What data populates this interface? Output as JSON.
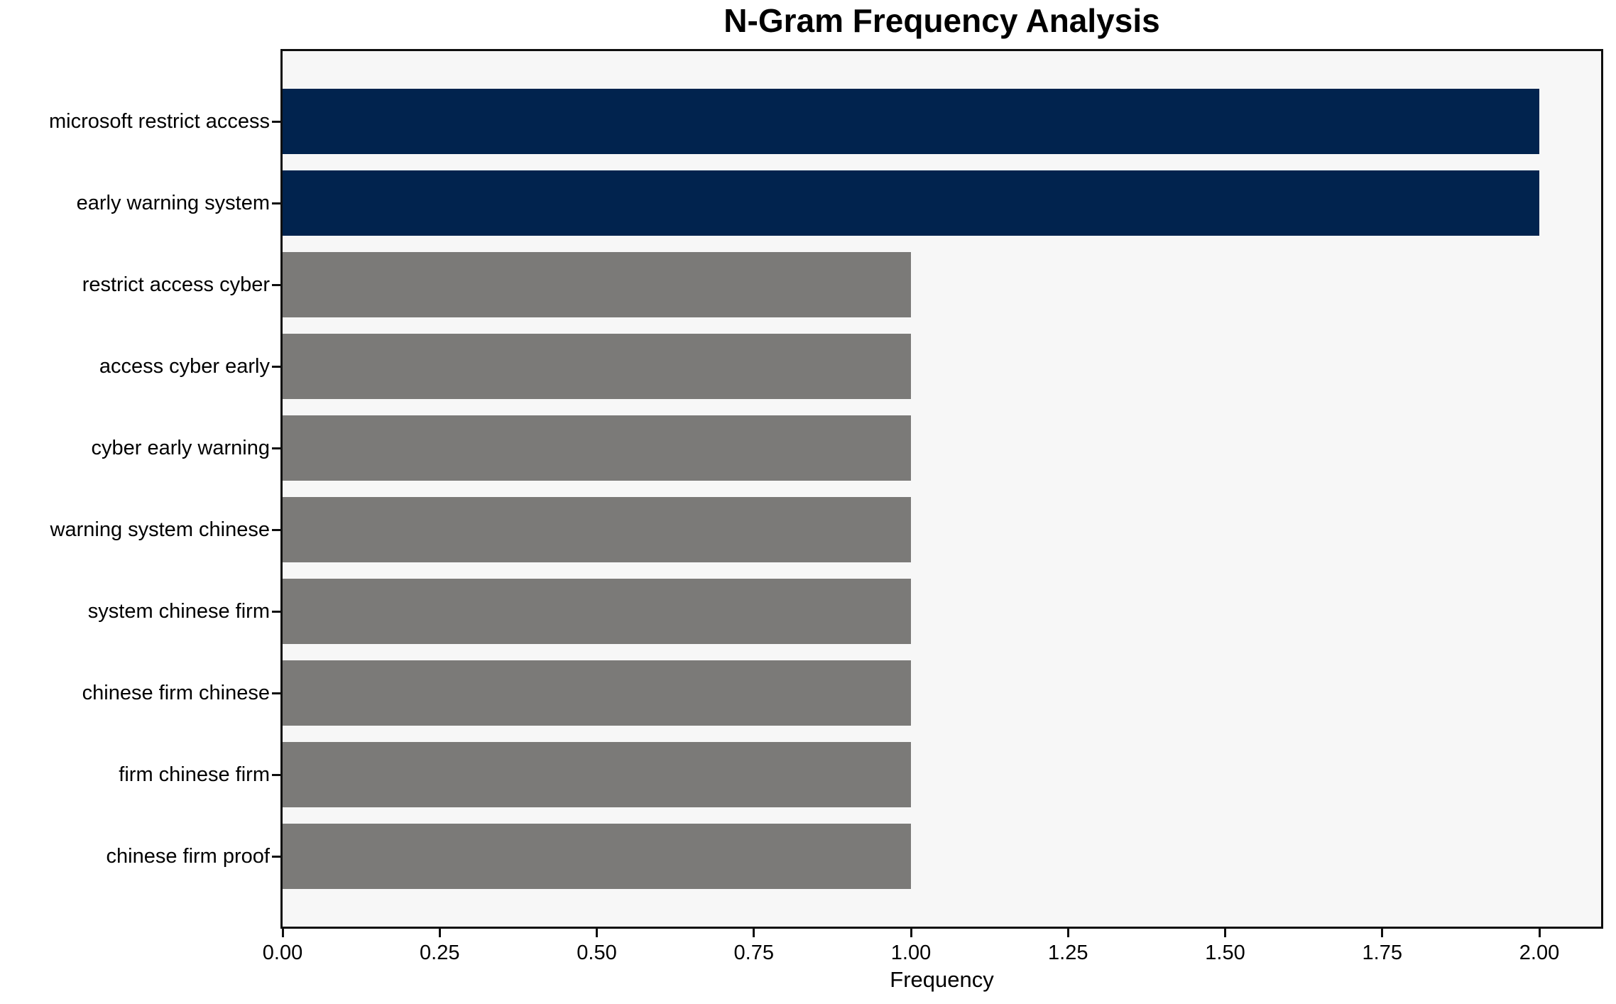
{
  "chart_data": {
    "type": "bar",
    "orientation": "horizontal",
    "title": "N-Gram Frequency Analysis",
    "xlabel": "Frequency",
    "ylabel": "",
    "grid": false,
    "legend": false,
    "xlim": [
      0,
      2.1
    ],
    "categories": [
      "microsoft restrict access",
      "early warning system",
      "restrict access cyber",
      "access cyber early",
      "cyber early warning",
      "warning system chinese",
      "system chinese firm",
      "chinese firm chinese",
      "firm chinese firm",
      "chinese firm proof"
    ],
    "values": [
      2,
      2,
      1,
      1,
      1,
      1,
      1,
      1,
      1,
      1
    ],
    "bars": [
      {
        "label": "microsoft restrict access",
        "value": 2,
        "color": "#01234e"
      },
      {
        "label": "early warning system",
        "value": 2,
        "color": "#01234e"
      },
      {
        "label": "restrict access cyber",
        "value": 1,
        "color": "#7b7a78"
      },
      {
        "label": "access cyber early",
        "value": 1,
        "color": "#7b7a78"
      },
      {
        "label": "cyber early warning",
        "value": 1,
        "color": "#7b7a78"
      },
      {
        "label": "warning system chinese",
        "value": 1,
        "color": "#7b7a78"
      },
      {
        "label": "system chinese firm",
        "value": 1,
        "color": "#7b7a78"
      },
      {
        "label": "chinese firm chinese",
        "value": 1,
        "color": "#7b7a78"
      },
      {
        "label": "firm chinese firm",
        "value": 1,
        "color": "#7b7a78"
      },
      {
        "label": "chinese firm proof",
        "value": 1,
        "color": "#7b7a78"
      }
    ],
    "xticks": [
      {
        "value": 0.0,
        "label": "0.00"
      },
      {
        "value": 0.25,
        "label": "0.25"
      },
      {
        "value": 0.5,
        "label": "0.50"
      },
      {
        "value": 0.75,
        "label": "0.75"
      },
      {
        "value": 1.0,
        "label": "1.00"
      },
      {
        "value": 1.25,
        "label": "1.25"
      },
      {
        "value": 1.5,
        "label": "1.50"
      },
      {
        "value": 1.75,
        "label": "1.75"
      },
      {
        "value": 2.0,
        "label": "2.00"
      }
    ],
    "colors": {
      "highlight_bar": "#01234e",
      "default_bar": "#7b7a78",
      "plot_background": "#f7f7f7",
      "figure_background": "#ffffff",
      "spine": "#0f0f0f",
      "text": "#000000"
    }
  }
}
